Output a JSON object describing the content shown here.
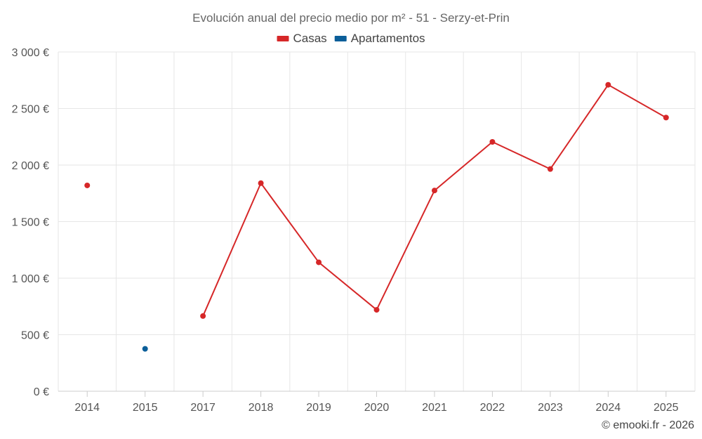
{
  "chart_data": {
    "type": "line",
    "title": "Evolución anual del precio medio por m² - 51 - Serzy-et-Prin",
    "categories": [
      "2014",
      "2015",
      "2017",
      "2018",
      "2019",
      "2020",
      "2021",
      "2022",
      "2023",
      "2024",
      "2025"
    ],
    "ylim": [
      0,
      3000
    ],
    "yticks": [
      0,
      500,
      1000,
      1500,
      2000,
      2500,
      3000
    ],
    "ytick_labels": [
      "0 €",
      "500 €",
      "1 000 €",
      "1 500 €",
      "2 000 €",
      "2 500 €",
      "3 000 €"
    ],
    "xlabel": "",
    "ylabel": "",
    "grid": true,
    "legend_position": "top-center",
    "series": [
      {
        "name": "Casas",
        "color": "#d62728",
        "values": [
          1820,
          null,
          665,
          1840,
          1140,
          720,
          1775,
          2205,
          1965,
          2710,
          2420
        ]
      },
      {
        "name": "Apartamentos",
        "color": "#0b5e99",
        "values": [
          null,
          375,
          null,
          null,
          null,
          null,
          null,
          null,
          null,
          null,
          null
        ]
      }
    ]
  },
  "credit": "© emooki.fr - 2026"
}
